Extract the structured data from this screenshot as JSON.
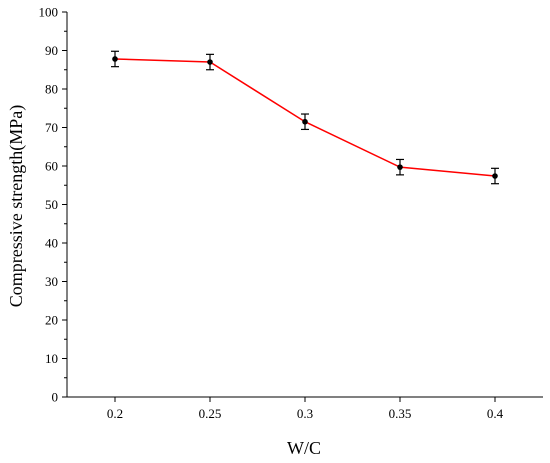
{
  "chart_data": {
    "type": "line",
    "x_categories": [
      "0.2",
      "0.25",
      "0.3",
      "0.35",
      "0.4"
    ],
    "series": [
      {
        "values": [
          87.8,
          87.0,
          71.5,
          59.7,
          57.4
        ],
        "errors": [
          2.0,
          2.0,
          2.0,
          2.0,
          2.0
        ],
        "line_color": "#ff0000",
        "marker_color": "#000000"
      }
    ],
    "xlabel": "W/C",
    "ylabel": "Compressive strength(MPa)",
    "ylim": [
      0,
      100
    ],
    "yticks": [
      0,
      10,
      20,
      30,
      40,
      50,
      60,
      70,
      80,
      90,
      100
    ],
    "grid": false,
    "legend": "none"
  }
}
